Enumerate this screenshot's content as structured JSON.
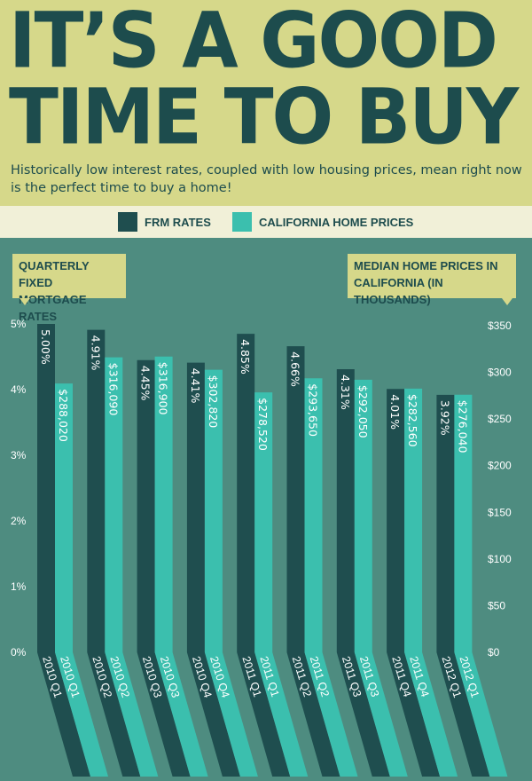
{
  "header": {
    "title_line1": "IT’S A GOOD",
    "title_line2": "TIME TO BUY",
    "subtitle": "Historically low interest rates, coupled with low housing prices, mean right now is the perfect time to buy a home!"
  },
  "colors": {
    "frm": "#1f4e4f",
    "prices": "#3bbfae",
    "background": "#4e8c80",
    "header": "#d6d88a"
  },
  "chart_data": {
    "type": "bar",
    "legend": [
      "FRM RATES",
      "CALIFORNIA HOME PRICES"
    ],
    "left_axis_title": "QUARTERLY FIXED MORTGAGE RATES",
    "right_axis_title": "MEDIAN HOME PRICES IN CALIFORNIA (IN THOUSANDS)",
    "left_ticks": [
      "0%",
      "1%",
      "2%",
      "3%",
      "4%",
      "5%"
    ],
    "right_ticks": [
      "$0",
      "$50",
      "$100",
      "$150",
      "$200",
      "$250",
      "$300",
      "$350"
    ],
    "left_ylim": [
      0,
      5
    ],
    "right_ylim": [
      0,
      350
    ],
    "series": [
      {
        "name": "FRM RATES",
        "categories": [
          "2010 Q1",
          "2010 Q2",
          "2010 Q3",
          "2010 Q4",
          "2011 Q1",
          "2011 Q2",
          "2011 Q3",
          "2011 Q4",
          "2012 Q1"
        ],
        "values": [
          5.0,
          4.91,
          4.45,
          4.41,
          4.85,
          4.66,
          4.31,
          4.01,
          3.92
        ],
        "labels": [
          "5.00%",
          "4.91%",
          "4.45%",
          "4.41%",
          "4.85%",
          "4.66%",
          "4.31%",
          "4.01%",
          "3.92%"
        ]
      },
      {
        "name": "CALIFORNIA HOME PRICES",
        "categories": [
          "2010 Q1",
          "2010 Q2",
          "2010 Q3",
          "2010 Q4",
          "2011 Q1",
          "2011 Q2",
          "2011 Q3",
          "2011 Q4",
          "2012 Q1"
        ],
        "values": [
          288.02,
          316.09,
          316.9,
          302.82,
          278.52,
          293.65,
          292.05,
          282.56,
          276.04
        ],
        "labels": [
          "$288,020",
          "$316,090",
          "$316,900",
          "$302,820",
          "$278,520",
          "$293,650",
          "$292,050",
          "$282,560",
          "$276,040"
        ]
      }
    ]
  }
}
